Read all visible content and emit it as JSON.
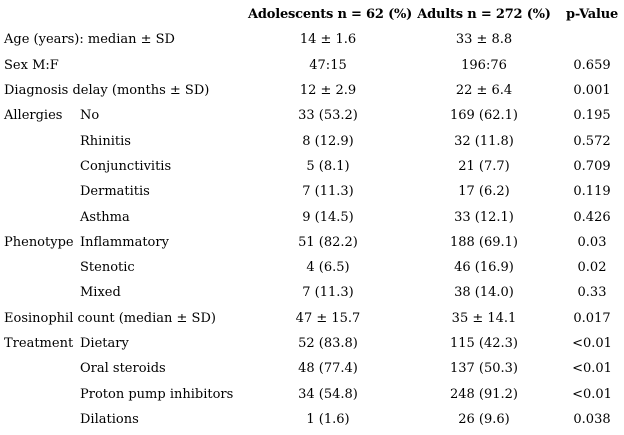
{
  "table": {
    "header": {
      "adolescents": "Adolescents n = 62 (%)",
      "adults": "Adults n = 272 (%)",
      "p_value": "p-Value"
    },
    "rows": [
      {
        "category": "Age (years): median ± SD",
        "subcategory": "",
        "span": true,
        "adolescents": "14 ± 1.6",
        "adults": "33 ± 8.8",
        "p": ""
      },
      {
        "category": "Sex M:F",
        "subcategory": "",
        "span": true,
        "adolescents": "47:15",
        "adults": "196:76",
        "p": "0.659"
      },
      {
        "category": "Diagnosis delay (months ± SD)",
        "subcategory": "",
        "span": true,
        "adolescents": "12 ± 2.9",
        "adults": "22 ± 6.4",
        "p": "0.001"
      },
      {
        "category": "Allergies",
        "subcategory": "No",
        "span": false,
        "adolescents": "33 (53.2)",
        "adults": "169 (62.1)",
        "p": "0.195"
      },
      {
        "category": "",
        "subcategory": "Rhinitis",
        "span": false,
        "adolescents": "8 (12.9)",
        "adults": "32 (11.8)",
        "p": "0.572"
      },
      {
        "category": "",
        "subcategory": "Conjunctivitis",
        "span": false,
        "adolescents": "5 (8.1)",
        "adults": "21 (7.7)",
        "p": "0.709"
      },
      {
        "category": "",
        "subcategory": "Dermatitis",
        "span": false,
        "adolescents": "7 (11.3)",
        "adults": "17 (6.2)",
        "p": "0.119"
      },
      {
        "category": "",
        "subcategory": "Asthma",
        "span": false,
        "adolescents": "9 (14.5)",
        "adults": "33 (12.1)",
        "p": "0.426"
      },
      {
        "category": "Phenotype",
        "subcategory": "Inflammatory",
        "span": false,
        "adolescents": "51 (82.2)",
        "adults": "188 (69.1)",
        "p": "0.03"
      },
      {
        "category": "",
        "subcategory": "Stenotic",
        "span": false,
        "adolescents": "4 (6.5)",
        "adults": "46 (16.9)",
        "p": "0.02"
      },
      {
        "category": "",
        "subcategory": "Mixed",
        "span": false,
        "adolescents": "7 (11.3)",
        "adults": "38 (14.0)",
        "p": "0.33"
      },
      {
        "category": "Eosinophil count (median ± SD)",
        "subcategory": "",
        "span": true,
        "adolescents": "47 ± 15.7",
        "adults": "35 ± 14.1",
        "p": "0.017"
      },
      {
        "category": "Treatment",
        "subcategory": "Dietary",
        "span": false,
        "adolescents": "52 (83.8)",
        "adults": "115 (42.3)",
        "p": "<0.01"
      },
      {
        "category": "",
        "subcategory": "Oral steroids",
        "span": false,
        "adolescents": "48 (77.4)",
        "adults": "137 (50.3)",
        "p": "<0.01"
      },
      {
        "category": "",
        "subcategory": "Proton pump inhibitors",
        "span": false,
        "adolescents": "34 (54.8)",
        "adults": "248 (91.2)",
        "p": "<0.01"
      },
      {
        "category": "",
        "subcategory": "Dilations",
        "span": false,
        "adolescents": "1 (1.6)",
        "adults": "26 (9.6)",
        "p": "0.038"
      }
    ]
  },
  "colors": {
    "text": "#000000",
    "background": "#ffffff"
  }
}
